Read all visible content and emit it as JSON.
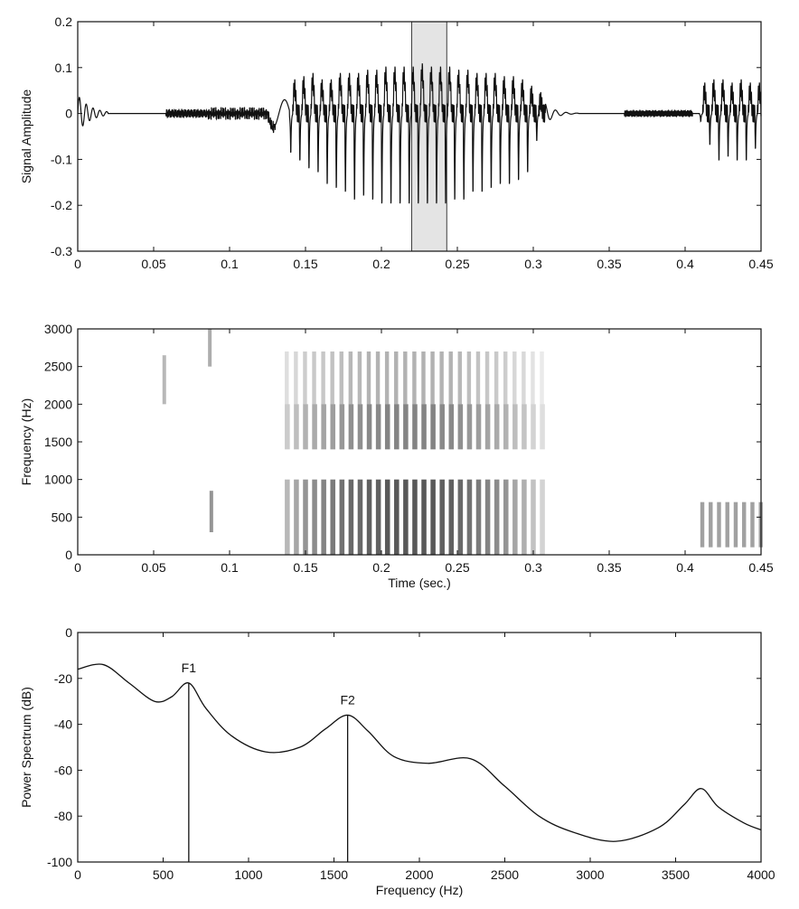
{
  "chart_data": [
    {
      "type": "line",
      "title": "",
      "xlabel": "",
      "ylabel": "Signal Amplitude",
      "xlim": [
        0,
        0.45
      ],
      "ylim": [
        -0.3,
        0.2
      ],
      "xticks": [
        0,
        0.05,
        0.1,
        0.15,
        0.2,
        0.25,
        0.3,
        0.35,
        0.4,
        0.45
      ],
      "yticks": [
        0.2,
        0.1,
        0,
        -0.1,
        -0.2,
        -0.3
      ],
      "xtick_labels": [
        "0",
        "0.05",
        "0.1",
        "0.15",
        "0.2",
        "0.25",
        "0.3",
        "0.35",
        "0.4",
        "0.45"
      ],
      "ytick_labels": [
        "0.2",
        "0.1",
        "0",
        "-0.1",
        "-0.2",
        "-0.3"
      ],
      "highlight": {
        "x_start": 0.22,
        "x_end": 0.243,
        "color": "#e4e4e4"
      },
      "voiced_pulses": {
        "x": [
          0.14,
          0.146,
          0.152,
          0.158,
          0.164,
          0.17,
          0.176,
          0.182,
          0.188,
          0.194,
          0.2,
          0.206,
          0.212,
          0.218,
          0.224,
          0.23,
          0.236,
          0.242,
          0.248,
          0.254,
          0.26,
          0.266,
          0.272,
          0.278,
          0.284,
          0.29,
          0.296,
          0.302
        ],
        "peak_max": [
          0.08,
          0.09,
          0.1,
          0.08,
          0.08,
          0.1,
          0.1,
          0.1,
          0.11,
          0.11,
          0.12,
          0.12,
          0.12,
          0.12,
          0.13,
          0.12,
          0.12,
          0.12,
          0.11,
          0.11,
          0.1,
          0.1,
          0.1,
          0.09,
          0.09,
          0.08,
          0.06,
          0.04
        ],
        "trough_min": [
          -0.1,
          -0.12,
          -0.14,
          -0.15,
          -0.18,
          -0.19,
          -0.2,
          -0.22,
          -0.21,
          -0.22,
          -0.23,
          -0.23,
          -0.23,
          -0.23,
          -0.23,
          -0.23,
          -0.23,
          -0.23,
          -0.22,
          -0.22,
          -0.2,
          -0.2,
          -0.19,
          -0.18,
          -0.18,
          -0.17,
          -0.15,
          -0.07
        ]
      },
      "late_pulses": {
        "x": [
          0.41,
          0.416,
          0.422,
          0.428,
          0.434,
          0.44,
          0.446
        ],
        "peak_max": [
          0.07,
          0.08,
          0.08,
          0.07,
          0.08,
          0.07,
          0.07
        ],
        "trough_min": [
          -0.02,
          -0.08,
          -0.12,
          -0.11,
          -0.12,
          -0.12,
          -0.09
        ]
      },
      "color": "#111111"
    },
    {
      "type": "heatmap",
      "title": "",
      "xlabel": "Time (sec.)",
      "ylabel": "Frequency (Hz)",
      "xlim": [
        0,
        0.45
      ],
      "ylim": [
        0,
        3000
      ],
      "xticks": [
        0,
        0.05,
        0.1,
        0.15,
        0.2,
        0.25,
        0.3,
        0.35,
        0.4,
        0.45
      ],
      "yticks": [
        3000,
        2500,
        2000,
        1500,
        1000,
        500,
        0
      ],
      "xtick_labels": [
        "0",
        "0.05",
        "0.1",
        "0.15",
        "0.2",
        "0.25",
        "0.3",
        "0.35",
        "0.4",
        "0.45"
      ],
      "ytick_labels": [
        "3000",
        "2500",
        "2000",
        "1500",
        "1000",
        "500",
        "0"
      ],
      "striations": {
        "x": [
          0.138,
          0.144,
          0.15,
          0.156,
          0.162,
          0.168,
          0.174,
          0.18,
          0.186,
          0.192,
          0.198,
          0.204,
          0.21,
          0.216,
          0.222,
          0.228,
          0.234,
          0.24,
          0.246,
          0.252,
          0.258,
          0.264,
          0.27,
          0.276,
          0.282,
          0.288,
          0.294,
          0.3,
          0.306
        ],
        "intensity": [
          0.4,
          0.5,
          0.6,
          0.65,
          0.7,
          0.75,
          0.8,
          0.85,
          0.85,
          0.9,
          0.9,
          0.95,
          0.95,
          0.95,
          0.95,
          0.95,
          0.95,
          0.9,
          0.9,
          0.85,
          0.8,
          0.75,
          0.7,
          0.65,
          0.6,
          0.5,
          0.45,
          0.35,
          0.25
        ],
        "band_low": [
          0,
          1000
        ],
        "band_mid": [
          1400,
          2000
        ],
        "band_top": [
          2000,
          2700
        ]
      },
      "early_marks": [
        {
          "x": 0.057,
          "f0": 2000,
          "f1": 2650,
          "intensity": 0.3
        },
        {
          "x": 0.087,
          "f0": 2500,
          "f1": 3000,
          "intensity": 0.35
        },
        {
          "x": 0.088,
          "f0": 300,
          "f1": 850,
          "intensity": 0.45
        }
      ],
      "late_block": {
        "x_start": 0.41,
        "x_end": 0.45,
        "f0": 100,
        "f1": 700,
        "intensity": 0.5
      },
      "color": "#111111"
    },
    {
      "type": "line",
      "title": "",
      "xlabel": "Frequency (Hz)",
      "ylabel": "Power Spectrum (dB)",
      "xlim": [
        0,
        4000
      ],
      "ylim": [
        -100,
        0
      ],
      "xticks": [
        0,
        500,
        1000,
        1500,
        2000,
        2500,
        3000,
        3500,
        4000
      ],
      "yticks": [
        0,
        -20,
        -40,
        -60,
        -80,
        -100
      ],
      "xtick_labels": [
        "0",
        "500",
        "1000",
        "1500",
        "2000",
        "2500",
        "3000",
        "3500",
        "4000"
      ],
      "ytick_labels": [
        "0",
        "-20",
        "-40",
        "-60",
        "-80",
        "-100"
      ],
      "x": [
        0,
        150,
        300,
        450,
        550,
        650,
        750,
        900,
        1100,
        1300,
        1450,
        1580,
        1700,
        1850,
        2050,
        2300,
        2500,
        2700,
        2900,
        3150,
        3400,
        3550,
        3650,
        3750,
        3900,
        4000
      ],
      "y": [
        -16,
        -14,
        -22,
        -30,
        -28,
        -22,
        -33,
        -45,
        -52,
        -50,
        -42,
        -36,
        -43,
        -54,
        -57,
        -55,
        -67,
        -80,
        -87,
        -91,
        -85,
        -75,
        -68,
        -76,
        -83,
        -86
      ],
      "annotations": [
        {
          "label": "F1",
          "x": 650,
          "y": -22
        },
        {
          "label": "F2",
          "x": 1580,
          "y": -36
        }
      ],
      "color": "#111111"
    }
  ]
}
